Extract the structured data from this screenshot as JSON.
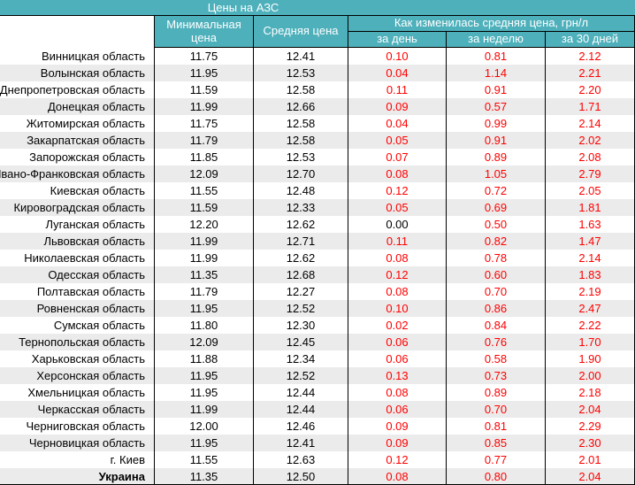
{
  "title": "Цены на АЗС",
  "columns": {
    "region": "",
    "min": "Минимальная цена",
    "avg": "Средняя цена",
    "change_group": "Как изменилась средняя цена, грн/л",
    "day": "за день",
    "week": "за неделю",
    "month": "за 30 дней"
  },
  "colors": {
    "header_bg": "#4db0bb",
    "header_text": "#ffffff",
    "stripe": "#ebebeb",
    "positive_change": "#ff0000",
    "zero_change": "#000000",
    "border": "#000000"
  },
  "rows": [
    {
      "region": "Винницкая область",
      "min": "11.75",
      "avg": "12.41",
      "day": "0.10",
      "week": "0.81",
      "month": "2.12"
    },
    {
      "region": "Волынская область",
      "min": "11.95",
      "avg": "12.53",
      "day": "0.04",
      "week": "1.14",
      "month": "2.21"
    },
    {
      "region": "Днепропетровская область",
      "min": "11.59",
      "avg": "12.58",
      "day": "0.11",
      "week": "0.91",
      "month": "2.20"
    },
    {
      "region": "Донецкая область",
      "min": "11.99",
      "avg": "12.66",
      "day": "0.09",
      "week": "0.57",
      "month": "1.71"
    },
    {
      "region": "Житомирская область",
      "min": "11.75",
      "avg": "12.58",
      "day": "0.04",
      "week": "0.99",
      "month": "2.14"
    },
    {
      "region": "Закарпатская область",
      "min": "11.79",
      "avg": "12.58",
      "day": "0.05",
      "week": "0.91",
      "month": "2.02"
    },
    {
      "region": "Запорожская область",
      "min": "11.85",
      "avg": "12.53",
      "day": "0.07",
      "week": "0.89",
      "month": "2.08"
    },
    {
      "region": "Ивано-Франковская область",
      "min": "12.09",
      "avg": "12.70",
      "day": "0.08",
      "week": "1.05",
      "month": "2.79"
    },
    {
      "region": "Киевская область",
      "min": "11.55",
      "avg": "12.48",
      "day": "0.12",
      "week": "0.72",
      "month": "2.05"
    },
    {
      "region": "Кировоградская область",
      "min": "11.59",
      "avg": "12.33",
      "day": "0.05",
      "week": "0.69",
      "month": "1.81"
    },
    {
      "region": "Луганская область",
      "min": "12.20",
      "avg": "12.62",
      "day": "0.00",
      "week": "0.50",
      "month": "1.63"
    },
    {
      "region": "Львовская область",
      "min": "11.99",
      "avg": "12.71",
      "day": "0.11",
      "week": "0.82",
      "month": "1.47"
    },
    {
      "region": "Николаевская область",
      "min": "11.99",
      "avg": "12.62",
      "day": "0.08",
      "week": "0.78",
      "month": "2.14"
    },
    {
      "region": "Одесская область",
      "min": "11.35",
      "avg": "12.68",
      "day": "0.12",
      "week": "0.60",
      "month": "1.83"
    },
    {
      "region": "Полтавская область",
      "min": "11.79",
      "avg": "12.27",
      "day": "0.08",
      "week": "0.70",
      "month": "2.19"
    },
    {
      "region": "Ровненская область",
      "min": "11.95",
      "avg": "12.52",
      "day": "0.10",
      "week": "0.86",
      "month": "2.47"
    },
    {
      "region": "Сумская область",
      "min": "11.80",
      "avg": "12.30",
      "day": "0.02",
      "week": "0.84",
      "month": "2.22"
    },
    {
      "region": "Тернопольская область",
      "min": "12.09",
      "avg": "12.45",
      "day": "0.06",
      "week": "0.76",
      "month": "1.70"
    },
    {
      "region": "Харьковская область",
      "min": "11.88",
      "avg": "12.34",
      "day": "0.06",
      "week": "0.58",
      "month": "1.90"
    },
    {
      "region": "Херсонская область",
      "min": "11.95",
      "avg": "12.52",
      "day": "0.13",
      "week": "0.73",
      "month": "2.00"
    },
    {
      "region": "Хмельницкая область",
      "min": "11.95",
      "avg": "12.44",
      "day": "0.08",
      "week": "0.89",
      "month": "2.18"
    },
    {
      "region": "Черкасская область",
      "min": "11.99",
      "avg": "12.44",
      "day": "0.06",
      "week": "0.70",
      "month": "2.04"
    },
    {
      "region": "Черниговская область",
      "min": "12.00",
      "avg": "12.46",
      "day": "0.09",
      "week": "0.81",
      "month": "2.29"
    },
    {
      "region": "Черновицкая область",
      "min": "11.95",
      "avg": "12.41",
      "day": "0.09",
      "week": "0.85",
      "month": "2.30"
    },
    {
      "region": "г. Киев",
      "min": "11.55",
      "avg": "12.63",
      "day": "0.12",
      "week": "0.77",
      "month": "2.01"
    },
    {
      "region": "Украина",
      "min": "11.35",
      "avg": "12.50",
      "day": "0.08",
      "week": "0.80",
      "month": "2.04",
      "bold": true
    }
  ]
}
